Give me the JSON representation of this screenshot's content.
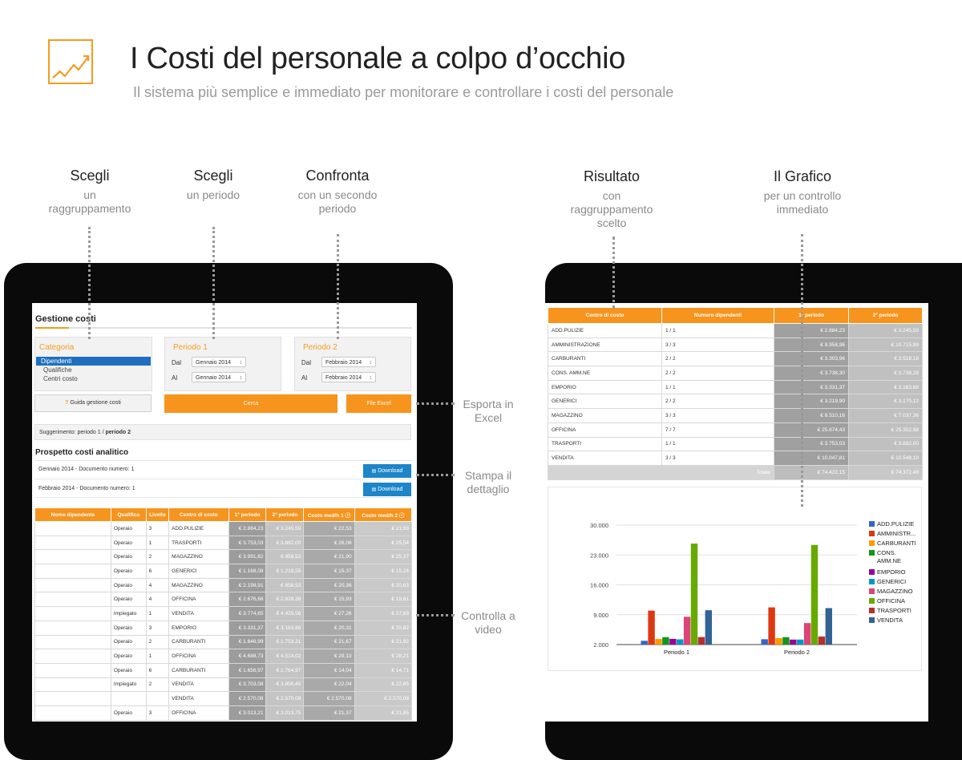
{
  "header": {
    "title": "I Costi del personale a colpo d’occhio",
    "subtitle": "Il sistema più semplice e immediato per monitorare e controllare i costi del personale"
  },
  "annotations": {
    "scegli_raggruppamento": {
      "title": "Scegli",
      "lines": [
        "un",
        "raggruppamento"
      ]
    },
    "scegli_periodo": {
      "title": "Scegli",
      "lines": [
        "un periodo"
      ]
    },
    "confronta": {
      "title": "Confronta",
      "lines": [
        "con un secondo",
        "periodo"
      ]
    },
    "risultato": {
      "title": "Risultato",
      "lines": [
        "con",
        "raggruppamento",
        "scelto"
      ]
    },
    "grafico": {
      "title": "Il Grafico",
      "lines": [
        "per un controllo",
        "immediato"
      ]
    },
    "esporta": [
      "Esporta in",
      "Excel"
    ],
    "stampa": [
      "Stampa il",
      "dettaglio"
    ],
    "controlla": [
      "Controlla a",
      "video"
    ]
  },
  "app": {
    "title": "Gestione costi",
    "categoria": {
      "label": "Categoria",
      "selected": "Dipendenti",
      "options": [
        "Qualifiche",
        "Centri costo"
      ]
    },
    "periodo1": {
      "label": "Periodo 1",
      "dal_label": "Dal",
      "dal": "Gennaio 2014",
      "al_label": "Al",
      "al": "Gennaio 2014"
    },
    "periodo2": {
      "label": "Periodo 2",
      "dal_label": "Dal",
      "dal": "Febbraio 2014",
      "al_label": "Al",
      "al": "Febbraio 2014"
    },
    "guide_label": "Guida gestione costi",
    "guide_icon": "?",
    "cerca_label": "Cerca",
    "excel_label": "File Excel",
    "suggerimento_prefix": "Suggerimento: periodo 1 / ",
    "suggerimento_bold": "periodo 2",
    "prospetto_title": "Prospetto costi analitico",
    "documents": [
      {
        "label": "Gennaio 2014 - Documento numero: 1",
        "button": "Download"
      },
      {
        "label": "Febbraio 2014 - Documento numero: 1",
        "button": "Download"
      }
    ],
    "table": {
      "headers": [
        "Nome dipendente",
        "Qualifica",
        "Livello",
        "Centro di costo",
        "1° periodo",
        "2° periodo",
        "Costo med/h 1",
        "Costo med/h 2"
      ],
      "rows": [
        [
          "",
          "Operaio",
          "3",
          "ADD.PULIZIE",
          "€ 2.884,23",
          "€ 3.245,59",
          "€ 22,53",
          "€ 21,93"
        ],
        [
          "",
          "Operaio",
          "1",
          "TRASPORTI",
          "€ 3.753,03",
          "€ 3.882,00",
          "€ 26,06",
          "€ 25,54"
        ],
        [
          "",
          "Operaio",
          "2",
          "MAGAZZINO",
          "€ 3.991,82",
          "€ 858,53",
          "€ 21,90",
          "€ 25,37"
        ],
        [
          "",
          "Operaio",
          "6",
          "GENERICI",
          "€ 1.168,08",
          "€ 1.219,55",
          "€ 15,37",
          "€ 15,24"
        ],
        [
          "",
          "Operaio",
          "4",
          "MAGAZZINO",
          "€ 2.198,91",
          "€ 858,53",
          "€ 20,36",
          "€ 20,63"
        ],
        [
          "",
          "Operaio",
          "4",
          "OFFICINA",
          "€ 2.676,68",
          "€ 2.828,38",
          "€ 15,93",
          "€ 18,61"
        ],
        [
          "",
          "Impiegato",
          "1",
          "VENDITA",
          "€ 3.774,65",
          "€ 4.429,56",
          "€ 27,26",
          "€ 27,68"
        ],
        [
          "",
          "Operaio",
          "3",
          "EMPORIO",
          "€ 3.331,37",
          "€ 3.163,88",
          "€ 20,31",
          "€ 20,82"
        ],
        [
          "",
          "Operaio",
          "2",
          "CARBURANTI",
          "€ 1.646,99",
          "€ 1.753,21",
          "€ 21,67",
          "€ 21,92"
        ],
        [
          "",
          "Operaio",
          "1",
          "OFFICINA",
          "€ 4.688,73",
          "€ 4.514,02",
          "€ 29,13",
          "€ 28,21"
        ],
        [
          "",
          "Operaio",
          "6",
          "CARBURANTI",
          "€ 1.656,97",
          "€ 1.764,97",
          "€ 14,04",
          "€ 14,71"
        ],
        [
          "",
          "Impiegato",
          "2",
          "VENDITA",
          "€ 3.703,08",
          "€ 3.856,45",
          "€ 22,04",
          "€ 22,65"
        ],
        [
          "",
          "",
          "",
          "VENDITA",
          "€ 2.570,08",
          "€ 2.570,08",
          "€ 2.570,08",
          "€ 2.570,08"
        ],
        [
          "",
          "Operaio",
          "3",
          "OFFICINA",
          "€ 3.013,21",
          "€ 3.013,75",
          "€ 21,37",
          "€ 21,85"
        ]
      ]
    }
  },
  "result": {
    "headers": [
      "Centro di costo",
      "Numero dipendenti",
      "1° periodo",
      "2° periodo"
    ],
    "rows": [
      [
        "ADD.PULIZIE",
        "1 / 1",
        "€ 2.884,23",
        "€ 3.245,59"
      ],
      [
        "AMMINISTRAZIONE",
        "3 / 3",
        "€ 9.958,96",
        "€ 10.715,99"
      ],
      [
        "CARBURANTI",
        "2 / 2",
        "€ 3.303,96",
        "€ 3.518,18"
      ],
      [
        "CONS. AMM.NE",
        "2 / 2",
        "€ 3.738,30",
        "€ 3.738,28"
      ],
      [
        "EMPORIO",
        "1 / 1",
        "€ 3.331,37",
        "€ 3.163,88"
      ],
      [
        "GENERICI",
        "2 / 2",
        "€ 3.219,90",
        "€ 3.170,12"
      ],
      [
        "MAGAZZINO",
        "3 / 3",
        "€ 8.510,16",
        "€ 7.037,36"
      ],
      [
        "OFFICINA",
        "7 / 7",
        "€ 25.674,43",
        "€ 25.352,98"
      ],
      [
        "TRASPORTI",
        "1 / 1",
        "€ 3.753,03",
        "€ 3.882,00"
      ],
      [
        "VENDITA",
        "3 / 3",
        "€ 10.047,81",
        "€ 10.548,10"
      ]
    ],
    "total_label": "Totale",
    "total_1": "€ 74.422,15",
    "total_2": "€ 74.372,48"
  },
  "chart_data": {
    "type": "bar",
    "categories": [
      "Periodo 1",
      "Periodo 2"
    ],
    "ylim": [
      2000,
      30000
    ],
    "ticks": [
      "30.000",
      "23.000",
      "16.000",
      "9.000",
      "2.000"
    ],
    "tick_values": [
      30000,
      23000,
      16000,
      9000,
      2000
    ],
    "legend_position": "right",
    "series": [
      {
        "name": "ADD.PULIZIE",
        "color": "#3366cc",
        "values": [
          2884,
          3246
        ]
      },
      {
        "name": "AMMINISTR...",
        "color": "#dc3912",
        "values": [
          9959,
          10716
        ]
      },
      {
        "name": "CARBURANTI",
        "color": "#ff9900",
        "values": [
          3304,
          3518
        ]
      },
      {
        "name": "CONS. AMM.NE",
        "color": "#109618",
        "values": [
          3738,
          3738
        ]
      },
      {
        "name": "EMPORIO",
        "color": "#990099",
        "values": [
          3331,
          3164
        ]
      },
      {
        "name": "GENERICI",
        "color": "#0099c6",
        "values": [
          3220,
          3170
        ]
      },
      {
        "name": "MAGAZZINO",
        "color": "#dd4477",
        "values": [
          8510,
          7037
        ]
      },
      {
        "name": "OFFICINA",
        "color": "#66aa00",
        "values": [
          25674,
          25353
        ]
      },
      {
        "name": "TRASPORTI",
        "color": "#b82e2e",
        "values": [
          3753,
          3882
        ]
      },
      {
        "name": "VENDITA",
        "color": "#316395",
        "values": [
          10048,
          10548
        ]
      }
    ]
  }
}
